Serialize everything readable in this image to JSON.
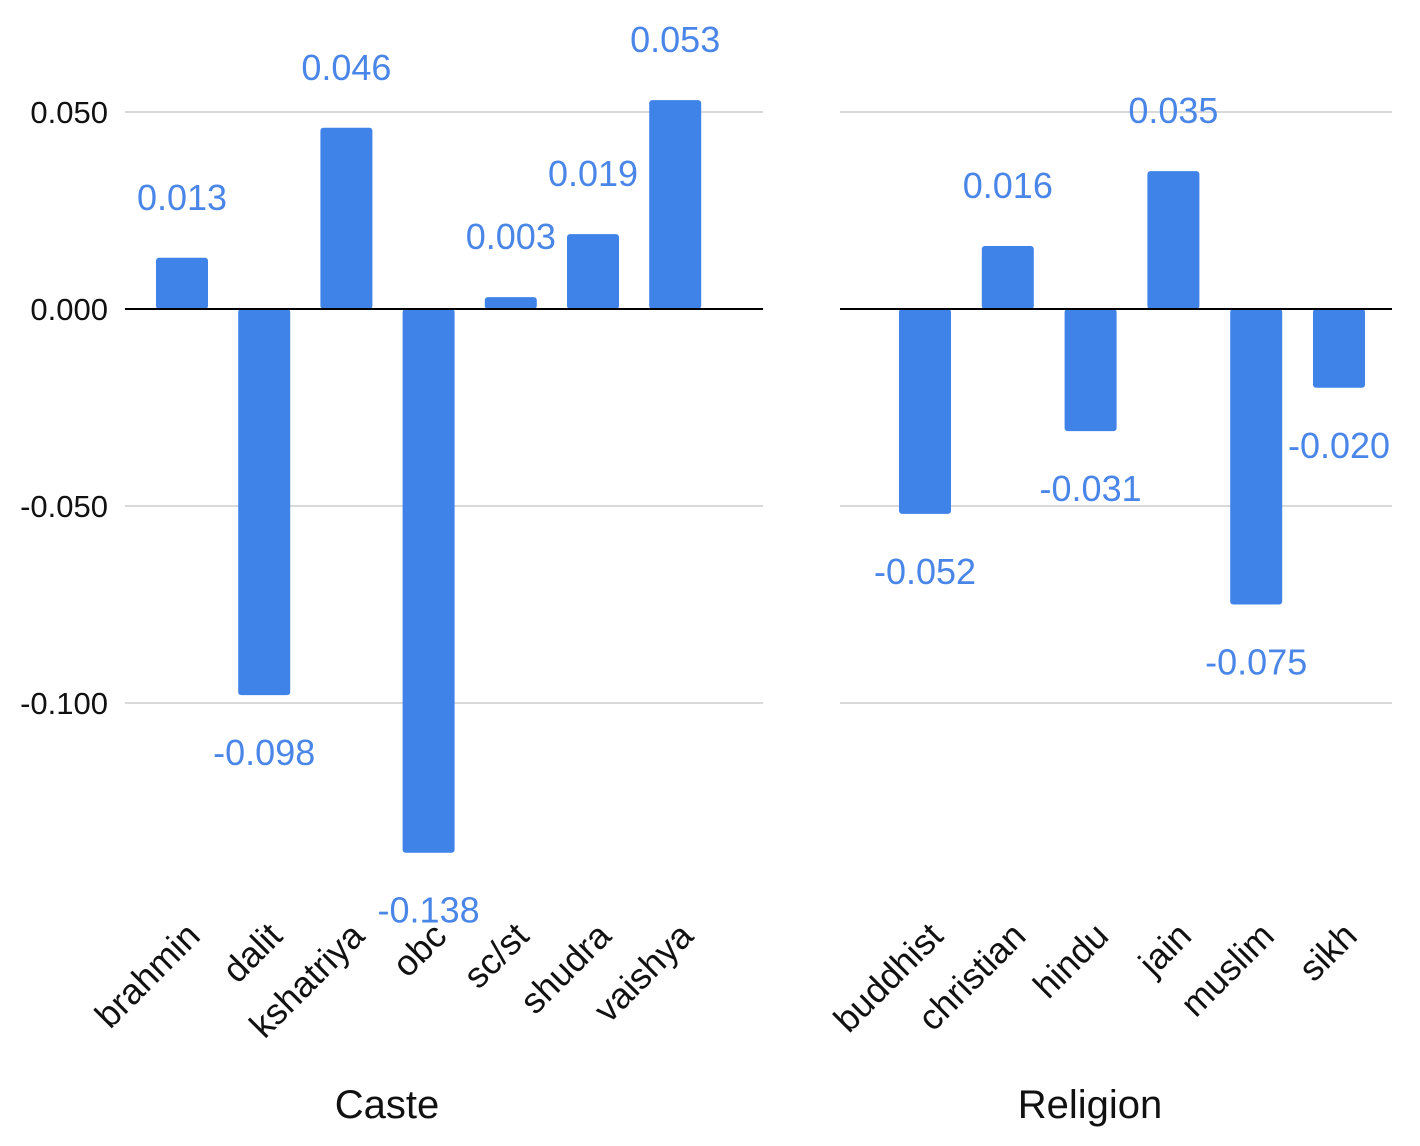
{
  "chart_data": [
    {
      "type": "bar",
      "title": "",
      "xlabel": "Caste",
      "ylabel": "",
      "ylim": [
        -0.15,
        0.06
      ],
      "yticks": [
        0.05,
        0.0,
        -0.05,
        -0.1
      ],
      "ytick_labels": [
        "0.050",
        "0.000",
        "-0.050",
        "-0.100"
      ],
      "grid": true,
      "legend": "none",
      "categories": [
        "brahmin",
        "dalit",
        "kshatriya",
        "obc",
        "sc/st",
        "shudra",
        "vaishya"
      ],
      "values": [
        0.013,
        -0.098,
        0.046,
        -0.138,
        0.003,
        0.019,
        0.053
      ],
      "data_labels": [
        "0.013",
        "-0.098",
        "0.046",
        "-0.138",
        "0.003",
        "0.019",
        "0.053"
      ],
      "color": "#3f83e8",
      "label_color": "#4a86e8"
    },
    {
      "type": "bar",
      "title": "",
      "xlabel": "Religion",
      "ylabel": "",
      "ylim": [
        -0.15,
        0.06
      ],
      "yticks": [
        0.05,
        0.0,
        -0.05,
        -0.1
      ],
      "grid": true,
      "legend": "none",
      "categories": [
        "buddhist",
        "christian",
        "hindu",
        "jain",
        "muslim",
        "sikh"
      ],
      "values": [
        -0.052,
        0.016,
        -0.031,
        0.035,
        -0.075,
        -0.02
      ],
      "data_labels": [
        "-0.052",
        "0.016",
        "-0.031",
        "0.035",
        "-0.075",
        "-0.020"
      ],
      "color": "#3f83e8",
      "label_color": "#4a86e8"
    }
  ]
}
